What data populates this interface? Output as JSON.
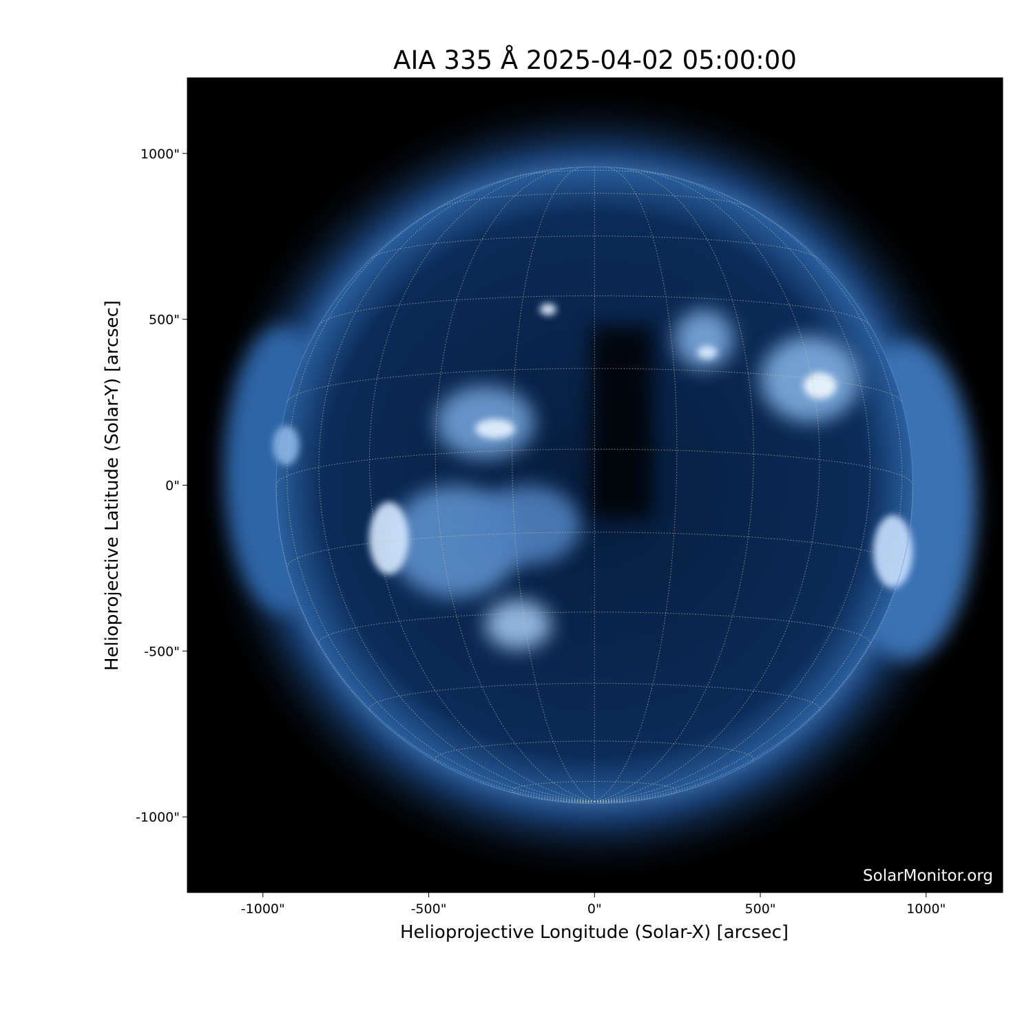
{
  "chart_data": {
    "type": "image",
    "title": "AIA 335 Å 2025-04-02 05:00:00",
    "xlabel": "Helioprojective Longitude (Solar-X) [arcsec]",
    "ylabel": "Helioprojective Latitude (Solar-Y) [arcsec]",
    "xlim": [
      -1228,
      1231
    ],
    "ylim": [
      -1228,
      1228
    ],
    "xticks": [
      -1000,
      -500,
      0,
      500,
      1000
    ],
    "yticks": [
      -1000,
      -500,
      0,
      500,
      1000
    ],
    "xtick_labels": [
      "-1000\"",
      "-500\"",
      "0\"",
      "500\"",
      "1000\""
    ],
    "ytick_labels": [
      "-1000\"",
      "-500\"",
      "0\"",
      "500\"",
      "1000\""
    ],
    "solar_radius_arcsec": 960,
    "grid": true,
    "grid_spacing_deg": 15,
    "colormap": "sdoaia335",
    "colors": {
      "background": "#000000",
      "disk": "#0a2a55",
      "bright": "#d8ecff",
      "grid": "#c8c8a0"
    },
    "watermark": "SolarMonitor.org"
  }
}
